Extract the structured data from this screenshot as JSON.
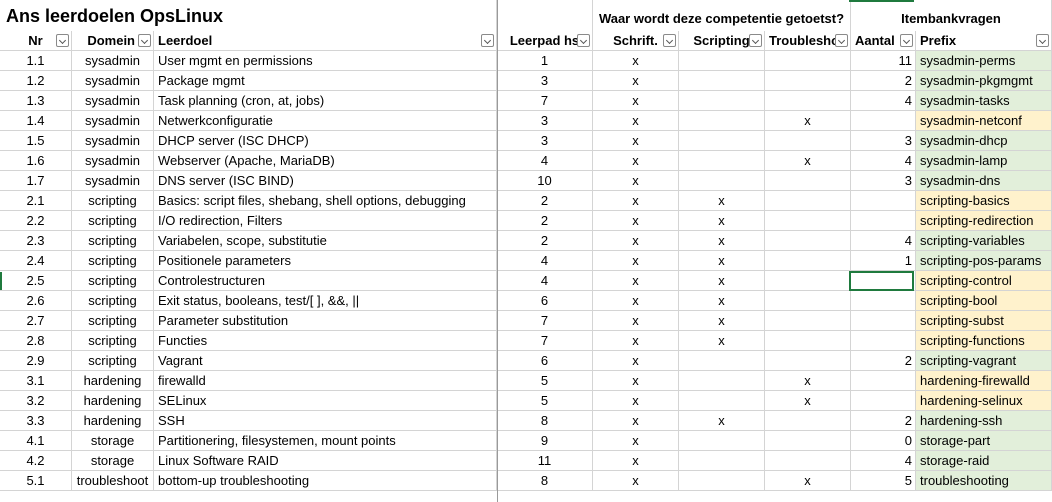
{
  "sheet": {
    "title": "Ans leerdoelen OpsLinux",
    "group_competency": "Waar wordt deze competentie getoetst?",
    "group_itembank": "Itembankvragen"
  },
  "headers": {
    "nr": "Nr",
    "domein": "Domein",
    "leerdoel": "Leerdoel",
    "leerpad": "Leerpad hs",
    "schrift": "Schrift.",
    "scripting": "Scripting",
    "troubleshoot": "Troubleshoo",
    "aantal": "Aantal",
    "prefix": "Prefix"
  },
  "rows": [
    {
      "nr": "1.1",
      "domein": "sysadmin",
      "leerdoel": "User mgmt en permissions",
      "lp": "1",
      "sch": "x",
      "scr": "",
      "trb": "",
      "aantal": "11",
      "prefix": "sysadmin-perms",
      "pc": "green"
    },
    {
      "nr": "1.2",
      "domein": "sysadmin",
      "leerdoel": "Package mgmt",
      "lp": "3",
      "sch": "x",
      "scr": "",
      "trb": "",
      "aantal": "2",
      "prefix": "sysadmin-pkgmgmt",
      "pc": "green"
    },
    {
      "nr": "1.3",
      "domein": "sysadmin",
      "leerdoel": "Task planning (cron, at, jobs)",
      "lp": "7",
      "sch": "x",
      "scr": "",
      "trb": "",
      "aantal": "4",
      "prefix": "sysadmin-tasks",
      "pc": "green"
    },
    {
      "nr": "1.4",
      "domein": "sysadmin",
      "leerdoel": "Netwerkconfiguratie",
      "lp": "3",
      "sch": "x",
      "scr": "",
      "trb": "x",
      "aantal": "",
      "prefix": "sysadmin-netconf",
      "pc": "yellow"
    },
    {
      "nr": "1.5",
      "domein": "sysadmin",
      "leerdoel": "DHCP server (ISC DHCP)",
      "lp": "3",
      "sch": "x",
      "scr": "",
      "trb": "",
      "aantal": "3",
      "prefix": "sysadmin-dhcp",
      "pc": "green"
    },
    {
      "nr": "1.6",
      "domein": "sysadmin",
      "leerdoel": "Webserver (Apache, MariaDB)",
      "lp": "4",
      "sch": "x",
      "scr": "",
      "trb": "x",
      "aantal": "4",
      "prefix": "sysadmin-lamp",
      "pc": "green"
    },
    {
      "nr": "1.7",
      "domein": "sysadmin",
      "leerdoel": "DNS server (ISC BIND)",
      "lp": "10",
      "sch": "x",
      "scr": "",
      "trb": "",
      "aantal": "3",
      "prefix": "sysadmin-dns",
      "pc": "green"
    },
    {
      "nr": "2.1",
      "domein": "scripting",
      "leerdoel": "Basics: script files, shebang, shell options, debugging",
      "lp": "2",
      "sch": "x",
      "scr": "x",
      "trb": "",
      "aantal": "",
      "prefix": "scripting-basics",
      "pc": "yellow"
    },
    {
      "nr": "2.2",
      "domein": "scripting",
      "leerdoel": "I/O redirection, Filters",
      "lp": "2",
      "sch": "x",
      "scr": "x",
      "trb": "",
      "aantal": "",
      "prefix": "scripting-redirection",
      "pc": "yellow"
    },
    {
      "nr": "2.3",
      "domein": "scripting",
      "leerdoel": "Variabelen, scope, substitutie",
      "lp": "2",
      "sch": "x",
      "scr": "x",
      "trb": "",
      "aantal": "4",
      "prefix": "scripting-variables",
      "pc": "green"
    },
    {
      "nr": "2.4",
      "domein": "scripting",
      "leerdoel": "Positionele parameters",
      "lp": "4",
      "sch": "x",
      "scr": "x",
      "trb": "",
      "aantal": "1",
      "prefix": "scripting-pos-params",
      "pc": "green"
    },
    {
      "nr": "2.5",
      "domein": "scripting",
      "leerdoel": "Controlestructuren",
      "lp": "4",
      "sch": "x",
      "scr": "x",
      "trb": "",
      "aantal": "",
      "prefix": "scripting-control",
      "pc": "yellow"
    },
    {
      "nr": "2.6",
      "domein": "scripting",
      "leerdoel": "Exit status, booleans, test/[ ], &&, ||",
      "lp": "6",
      "sch": "x",
      "scr": "x",
      "trb": "",
      "aantal": "",
      "prefix": "scripting-bool",
      "pc": "yellow"
    },
    {
      "nr": "2.7",
      "domein": "scripting",
      "leerdoel": "Parameter substitution",
      "lp": "7",
      "sch": "x",
      "scr": "x",
      "trb": "",
      "aantal": "",
      "prefix": "scripting-subst",
      "pc": "yellow"
    },
    {
      "nr": "2.8",
      "domein": "scripting",
      "leerdoel": "Functies",
      "lp": "7",
      "sch": "x",
      "scr": "x",
      "trb": "",
      "aantal": "",
      "prefix": "scripting-functions",
      "pc": "yellow"
    },
    {
      "nr": "2.9",
      "domein": "scripting",
      "leerdoel": "Vagrant",
      "lp": "6",
      "sch": "x",
      "scr": "",
      "trb": "",
      "aantal": "2",
      "prefix": "scripting-vagrant",
      "pc": "green"
    },
    {
      "nr": "3.1",
      "domein": "hardening",
      "leerdoel": "firewalld",
      "lp": "5",
      "sch": "x",
      "scr": "",
      "trb": "x",
      "aantal": "",
      "prefix": "hardening-firewalld",
      "pc": "yellow"
    },
    {
      "nr": "3.2",
      "domein": "hardening",
      "leerdoel": "SELinux",
      "lp": "5",
      "sch": "x",
      "scr": "",
      "trb": "x",
      "aantal": "",
      "prefix": "hardening-selinux",
      "pc": "yellow"
    },
    {
      "nr": "3.3",
      "domein": "hardening",
      "leerdoel": "SSH",
      "lp": "8",
      "sch": "x",
      "scr": "x",
      "trb": "",
      "aantal": "2",
      "prefix": "hardening-ssh",
      "pc": "green"
    },
    {
      "nr": "4.1",
      "domein": "storage",
      "leerdoel": "Partitionering, filesystemen, mount points",
      "lp": "9",
      "sch": "x",
      "scr": "",
      "trb": "",
      "aantal": "0",
      "prefix": "storage-part",
      "pc": "green"
    },
    {
      "nr": "4.2",
      "domein": "storage",
      "leerdoel": "Linux Software RAID",
      "lp": "11",
      "sch": "x",
      "scr": "",
      "trb": "",
      "aantal": "4",
      "prefix": "storage-raid",
      "pc": "green"
    },
    {
      "nr": "5.1",
      "domein": "troubleshoot",
      "leerdoel": "bottom-up troubleshooting",
      "lp": "8",
      "sch": "x",
      "scr": "",
      "trb": "x",
      "aantal": "5",
      "prefix": "troubleshooting",
      "pc": "green"
    }
  ]
}
